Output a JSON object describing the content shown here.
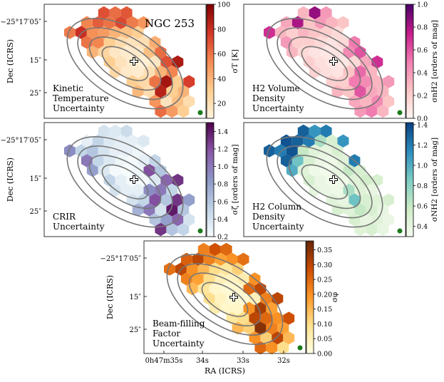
{
  "figure": {
    "panels": [
      {
        "id": "kinetic",
        "title": "NGC 253",
        "label_lines": [
          "Kinetic",
          "Temperature",
          "Uncertainty"
        ],
        "ylabel": "Dec (ICRS)",
        "yticks": [
          "−25°17′05″",
          "15″",
          "25″"
        ],
        "colorbar": {
          "label": "σT [K]",
          "ticks": [
            "20",
            "40",
            "60",
            "80",
            "100"
          ],
          "range": [
            8,
            100
          ],
          "colors": [
            "#fff3dd",
            "#fdcd8f",
            "#f48a52",
            "#d33627",
            "#7f0000"
          ]
        }
      },
      {
        "id": "volume",
        "title": "",
        "label_lines": [
          "H2 Volume",
          "Density",
          "Uncertainty"
        ],
        "ylabel": "",
        "yticks": [],
        "colorbar": {
          "label": "σnH2 [orders of mag]",
          "ticks": [
            "0.0",
            "0.2",
            "0.4",
            "0.6",
            "0.8",
            "1.0"
          ],
          "range": [
            0,
            1
          ],
          "colors": [
            "#fff7f3",
            "#fbc5c5",
            "#f17cb0",
            "#c51b8a",
            "#49006a"
          ]
        }
      },
      {
        "id": "crir",
        "title": "",
        "label_lines": [
          "CRIR",
          "Uncertainty"
        ],
        "ylabel": "Dec (ICRS)",
        "yticks": [
          "−25°17′05″",
          "15″",
          "25″"
        ],
        "colorbar": {
          "label": "σζ [orders of mag]",
          "ticks": [
            "0.2",
            "0.4",
            "0.6",
            "0.8",
            "1.0",
            "1.2",
            "1.4"
          ],
          "range": [
            0.2,
            1.5
          ],
          "colors": [
            "#f7fcfd",
            "#bfd3e6",
            "#8c96c6",
            "#8856a7",
            "#4d004b"
          ]
        }
      },
      {
        "id": "column",
        "title": "",
        "label_lines": [
          "H2 Column",
          "Density",
          "Uncertainty"
        ],
        "ylabel": "",
        "yticks": [],
        "colorbar": {
          "label": "σNH2 [orders of mag]",
          "ticks": [
            "0.4",
            "0.6",
            "0.8",
            "1.0",
            "1.2",
            "1.4"
          ],
          "range": [
            0.3,
            1.42
          ],
          "colors": [
            "#f7fcf0",
            "#ccebc5",
            "#7bccc4",
            "#2b8cbe",
            "#084081"
          ]
        }
      },
      {
        "id": "beam",
        "title": "",
        "label_lines": [
          "Beam-filling",
          "Factor",
          "Uncertainty"
        ],
        "ylabel": "Dec (ICRS)",
        "yticks": [
          "−25°17′05″",
          "15″",
          "25″"
        ],
        "xlabel": "RA (ICRS)",
        "xticks": [
          "0h47m35s",
          "34s",
          "33s",
          "32s"
        ],
        "colorbar": {
          "label": "σφ",
          "ticks": [
            "0.00",
            "0.05",
            "0.10",
            "0.15",
            "0.20",
            "0.25",
            "0.30",
            "0.35"
          ],
          "range": [
            0,
            0.38
          ],
          "colors": [
            "#ffffe5",
            "#fee391",
            "#fe9929",
            "#cc4c02",
            "#662506"
          ]
        }
      }
    ]
  },
  "chart_data": [
    {
      "type": "heatmap",
      "title": "NGC 253 — Kinetic Temperature Uncertainty",
      "colorbar_label": "σT [K]",
      "range": [
        8,
        100
      ],
      "values": [
        [
          0,
          0,
          0,
          0,
          70,
          62,
          68,
          0,
          0,
          0,
          0,
          0,
          0
        ],
        [
          0,
          0,
          55,
          66,
          60,
          72,
          58,
          50,
          0,
          0,
          0,
          0,
          0
        ],
        [
          0,
          58,
          80,
          52,
          48,
          40,
          35,
          30,
          0,
          0,
          0,
          0,
          0
        ],
        [
          0,
          0,
          60,
          55,
          30,
          22,
          18,
          20,
          42,
          0,
          0,
          0,
          0
        ],
        [
          0,
          0,
          0,
          40,
          26,
          15,
          12,
          14,
          35,
          62,
          0,
          0,
          0
        ],
        [
          0,
          0,
          0,
          0,
          30,
          18,
          12,
          10,
          16,
          70,
          88,
          0,
          0
        ],
        [
          0,
          0,
          0,
          0,
          0,
          24,
          14,
          12,
          20,
          40,
          55,
          0,
          0
        ],
        [
          0,
          0,
          0,
          0,
          0,
          0,
          30,
          24,
          60,
          90,
          30,
          75,
          0
        ],
        [
          0,
          0,
          0,
          0,
          0,
          0,
          0,
          38,
          22,
          85,
          30,
          40,
          0
        ],
        [
          0,
          0,
          0,
          0,
          0,
          0,
          0,
          0,
          50,
          18,
          35,
          22,
          0
        ],
        [
          0,
          0,
          0,
          0,
          0,
          0,
          0,
          0,
          0,
          62,
          48,
          30,
          0
        ]
      ]
    },
    {
      "type": "heatmap",
      "title": "H2 Volume Density Uncertainty",
      "colorbar_label": "σnH2 [orders of mag]",
      "range": [
        0,
        1
      ],
      "values": [
        [
          0,
          0,
          0,
          0,
          0.3,
          0.85,
          0.4,
          0,
          0,
          0,
          0,
          0,
          0
        ],
        [
          0,
          0,
          0.35,
          0.8,
          0.25,
          0.4,
          0.3,
          0.25,
          0,
          0,
          0,
          0,
          0
        ],
        [
          0,
          0.7,
          0.3,
          0.2,
          0.3,
          0.25,
          0.2,
          0.15,
          0,
          0,
          0,
          0,
          0
        ],
        [
          0,
          0,
          0.4,
          0.2,
          0.2,
          0.15,
          0.1,
          0.15,
          0.5,
          0,
          0,
          0,
          0
        ],
        [
          0,
          0,
          0,
          0.3,
          0.15,
          0.1,
          0.08,
          0.1,
          0.45,
          0.6,
          0,
          0,
          0
        ],
        [
          0,
          0,
          0,
          0,
          0.2,
          0.12,
          0.08,
          0.08,
          0.15,
          0.35,
          0.7,
          0,
          0
        ],
        [
          0,
          0,
          0,
          0,
          0,
          0.18,
          0.12,
          0.1,
          0.25,
          0.55,
          0.3,
          0,
          0
        ],
        [
          0,
          0,
          0,
          0,
          0,
          0,
          0.2,
          0.2,
          0.5,
          0.45,
          0.3,
          0.4,
          0
        ],
        [
          0,
          0,
          0,
          0,
          0,
          0,
          0,
          0.3,
          0.25,
          0.6,
          0.35,
          0.3,
          0
        ],
        [
          0,
          0,
          0,
          0,
          0,
          0,
          0,
          0,
          0.35,
          0.3,
          0.45,
          0.25,
          0
        ],
        [
          0,
          0,
          0,
          0,
          0,
          0,
          0,
          0,
          0,
          0.4,
          0.5,
          0.3,
          0
        ]
      ]
    },
    {
      "type": "heatmap",
      "title": "CRIR Uncertainty",
      "colorbar_label": "σζ [orders of mag]",
      "range": [
        0.2,
        1.5
      ],
      "values": [
        [
          0,
          0,
          0,
          0,
          0.4,
          0.35,
          0.45,
          0,
          0,
          0,
          0,
          0,
          0
        ],
        [
          0,
          0,
          0.3,
          0.5,
          0.35,
          0.3,
          0.3,
          0.35,
          0,
          0,
          0,
          0,
          0
        ],
        [
          0,
          0.9,
          0.5,
          0.6,
          0.4,
          0.3,
          0.3,
          0.25,
          0,
          0,
          0,
          0,
          0
        ],
        [
          0,
          0,
          1.0,
          0.5,
          0.35,
          0.25,
          0.22,
          0.3,
          0.5,
          0,
          0,
          0,
          0
        ],
        [
          0,
          0,
          0,
          0.8,
          0.35,
          0.22,
          0.2,
          0.25,
          1.2,
          0.6,
          0,
          0,
          0
        ],
        [
          0,
          0,
          0,
          0,
          0.5,
          0.3,
          0.22,
          0.22,
          0.35,
          1.1,
          1.3,
          0,
          0
        ],
        [
          0,
          0,
          0,
          0,
          0,
          0.4,
          0.3,
          0.3,
          0.9,
          1.0,
          0.5,
          0,
          0
        ],
        [
          0,
          0,
          0,
          0,
          0,
          0,
          0.4,
          0.5,
          1.2,
          0.6,
          1.3,
          0.8,
          0
        ],
        [
          0,
          0,
          0,
          0,
          0,
          0,
          0,
          0.7,
          1.0,
          0.4,
          1.4,
          0.6,
          0
        ],
        [
          0,
          0,
          0,
          0,
          0,
          0,
          0,
          0,
          0.6,
          0.8,
          1.1,
          0.4,
          0
        ],
        [
          0,
          0,
          0,
          0,
          0,
          0,
          0,
          0,
          0,
          1.3,
          0.6,
          0.5,
          0
        ]
      ]
    },
    {
      "type": "heatmap",
      "title": "H2 Column Density Uncertainty",
      "colorbar_label": "σNH2 [orders of mag]",
      "range": [
        0.3,
        1.42
      ],
      "values": [
        [
          0,
          0,
          0,
          0,
          1.3,
          1.1,
          1.2,
          0,
          0,
          0,
          0,
          0,
          0
        ],
        [
          0,
          0,
          1.35,
          1.3,
          1.2,
          0.7,
          0.5,
          1.1,
          0,
          0,
          0,
          0,
          0
        ],
        [
          0,
          1.3,
          1.2,
          1.35,
          0.6,
          0.45,
          0.4,
          0.5,
          0,
          0,
          0,
          0,
          0
        ],
        [
          0,
          0,
          1.3,
          0.9,
          0.5,
          0.38,
          0.35,
          0.45,
          1.2,
          0,
          0,
          0,
          0
        ],
        [
          0,
          0,
          0,
          1.0,
          0.45,
          0.35,
          0.33,
          0.4,
          0.6,
          0.5,
          0,
          0,
          0
        ],
        [
          0,
          0,
          0,
          0,
          0.5,
          0.38,
          0.33,
          0.35,
          0.45,
          0.55,
          0.5,
          0,
          0
        ],
        [
          0,
          0,
          0,
          0,
          0,
          0.42,
          0.38,
          0.35,
          0.7,
          0.45,
          0.4,
          0,
          0
        ],
        [
          0,
          0,
          0,
          0,
          0,
          0,
          0.45,
          0.4,
          0.9,
          0.5,
          0.45,
          0.5,
          0
        ],
        [
          0,
          0,
          0,
          0,
          0,
          0,
          0,
          0.5,
          0.45,
          0.6,
          0.5,
          0.4,
          0
        ],
        [
          0,
          0,
          0,
          0,
          0,
          0,
          0,
          0,
          0.5,
          0.4,
          0.45,
          0.38,
          0
        ],
        [
          0,
          0,
          0,
          0,
          0,
          0,
          0,
          0,
          0,
          0.45,
          0.5,
          0.4,
          0
        ]
      ]
    },
    {
      "type": "heatmap",
      "title": "Beam-filling Factor Uncertainty",
      "colorbar_label": "σφ",
      "range": [
        0,
        0.38
      ],
      "values": [
        [
          0,
          0,
          0,
          0,
          0.22,
          0.28,
          0.25,
          0,
          0,
          0,
          0,
          0,
          0
        ],
        [
          0,
          0,
          0.26,
          0.3,
          0.22,
          0.18,
          0.2,
          0.24,
          0,
          0,
          0,
          0,
          0
        ],
        [
          0,
          0.24,
          0.3,
          0.2,
          0.15,
          0.1,
          0.08,
          0.12,
          0,
          0,
          0,
          0,
          0
        ],
        [
          0,
          0,
          0.22,
          0.18,
          0.1,
          0.05,
          0.04,
          0.06,
          0.2,
          0,
          0,
          0,
          0
        ],
        [
          0,
          0,
          0,
          0.15,
          0.08,
          0.03,
          0.02,
          0.03,
          0.25,
          0.3,
          0,
          0,
          0
        ],
        [
          0,
          0,
          0,
          0,
          0.1,
          0.04,
          0.02,
          0.02,
          0.05,
          0.22,
          0.3,
          0,
          0
        ],
        [
          0,
          0,
          0,
          0,
          0,
          0.06,
          0.03,
          0.03,
          0.2,
          0.32,
          0.18,
          0,
          0
        ],
        [
          0,
          0,
          0,
          0,
          0,
          0,
          0.08,
          0.1,
          0.3,
          0.25,
          0.2,
          0.28,
          0
        ],
        [
          0,
          0,
          0,
          0,
          0,
          0,
          0,
          0.15,
          0.12,
          0.35,
          0.22,
          0.18,
          0
        ],
        [
          0,
          0,
          0,
          0,
          0,
          0,
          0,
          0,
          0.2,
          0.12,
          0.3,
          0.15,
          0
        ],
        [
          0,
          0,
          0,
          0,
          0,
          0,
          0,
          0,
          0,
          0.25,
          0.2,
          0.1,
          0
        ]
      ]
    }
  ]
}
